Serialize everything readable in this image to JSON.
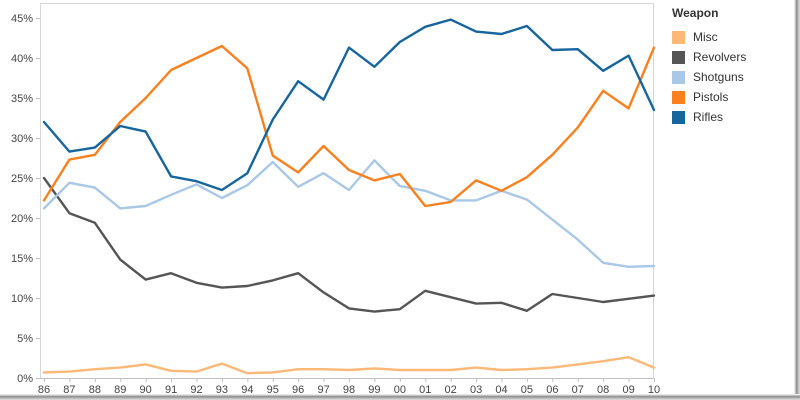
{
  "legend": {
    "title": "Weapon",
    "position": "right"
  },
  "y_axis": {
    "min": 0,
    "max": 45,
    "step": 5,
    "tick_suffix": "%"
  },
  "chart_data": {
    "type": "line",
    "title": "",
    "xlabel": "",
    "ylabel": "",
    "x_labels": [
      "86",
      "87",
      "88",
      "89",
      "90",
      "91",
      "92",
      "93",
      "94",
      "95",
      "96",
      "97",
      "98",
      "99",
      "00",
      "01",
      "02",
      "03",
      "04",
      "05",
      "06",
      "07",
      "08",
      "09",
      "10"
    ],
    "ylim": [
      0,
      47
    ],
    "grid": false,
    "legend_position": "right",
    "series": [
      {
        "name": "Misc",
        "color": "#FBB877",
        "values": [
          0.7,
          0.8,
          1.1,
          1.3,
          1.7,
          0.9,
          0.8,
          1.8,
          0.6,
          0.7,
          1.1,
          1.1,
          1.0,
          1.2,
          1.0,
          1.0,
          1.0,
          1.3,
          1.0,
          1.1,
          1.3,
          1.7,
          2.1,
          2.6,
          1.3
        ]
      },
      {
        "name": "Revolvers",
        "color": "#555555",
        "values": [
          25.0,
          20.6,
          19.4,
          14.8,
          12.3,
          13.1,
          11.9,
          11.3,
          11.5,
          12.2,
          13.1,
          10.7,
          8.7,
          8.3,
          8.6,
          10.9,
          10.1,
          9.3,
          9.4,
          8.4,
          10.5,
          10.0,
          9.5,
          9.9,
          10.3
        ]
      },
      {
        "name": "Shotguns",
        "color": "#A9C7E6",
        "values": [
          21.2,
          24.4,
          23.8,
          21.2,
          21.5,
          22.9,
          24.2,
          22.5,
          24.1,
          27.0,
          23.9,
          25.6,
          23.5,
          27.2,
          24.0,
          23.4,
          22.2,
          22.2,
          23.4,
          22.3,
          19.8,
          17.3,
          14.4,
          13.9,
          14.0
        ]
      },
      {
        "name": "Pistols",
        "color": "#F8801E",
        "values": [
          22.2,
          27.3,
          27.9,
          32.0,
          35.0,
          38.5,
          40.0,
          41.5,
          38.7,
          27.8,
          25.7,
          29.0,
          26.0,
          24.7,
          25.5,
          21.5,
          22.0,
          24.7,
          23.4,
          25.1,
          27.9,
          31.3,
          35.9,
          33.7,
          41.3
        ]
      },
      {
        "name": "Rifles",
        "color": "#17659D",
        "values": [
          32.0,
          28.3,
          28.8,
          31.5,
          30.8,
          25.2,
          24.6,
          23.5,
          25.6,
          32.3,
          37.1,
          34.8,
          41.3,
          38.9,
          42.0,
          43.9,
          44.8,
          43.3,
          43.0,
          44.0,
          41.0,
          41.1,
          38.4,
          40.3,
          33.5
        ]
      }
    ]
  }
}
